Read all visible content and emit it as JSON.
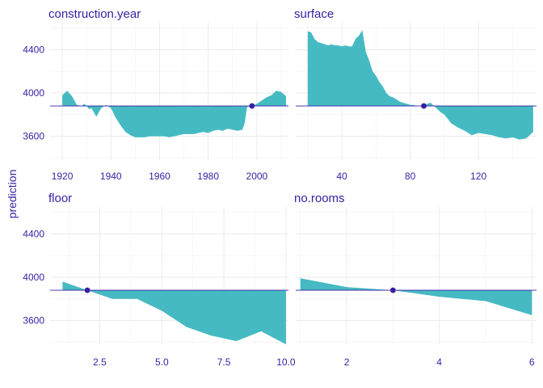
{
  "chart_data": {
    "type": "area",
    "ylabel": "prediction",
    "baseline": 3880,
    "ylim": [
      3380,
      4650
    ],
    "yticks": [
      3600,
      4000,
      4400
    ],
    "colors": {
      "fill": "#46bac2",
      "baseline": "#371ea3",
      "point": "#371ea3",
      "text": "#371ea3",
      "grid": "#ebebeb"
    },
    "panels": [
      {
        "title": "construction.year",
        "xlim": [
          1915,
          2013
        ],
        "xticks": [
          1920,
          1940,
          1960,
          1980,
          2000
        ],
        "highlight": {
          "x": 1998,
          "y": 3880
        },
        "x": [
          1915,
          1920,
          1922,
          1924,
          1926,
          1928,
          1929,
          1930,
          1931,
          1932,
          1934,
          1936,
          1938,
          1940,
          1942,
          1944,
          1946,
          1948,
          1950,
          1952,
          1954,
          1956,
          1958,
          1960,
          1962,
          1964,
          1966,
          1968,
          1970,
          1972,
          1974,
          1976,
          1978,
          1980,
          1982,
          1984,
          1986,
          1988,
          1990,
          1992,
          1994,
          1995,
          1996,
          1998,
          2000,
          2002,
          2004,
          2006,
          2008,
          2010,
          2012
        ],
        "y": [
          null,
          3980,
          4020,
          3970,
          3890,
          3880,
          3900,
          3880,
          3850,
          3860,
          3780,
          3860,
          3890,
          3860,
          3770,
          3700,
          3640,
          3610,
          3590,
          3590,
          3590,
          3600,
          3600,
          3600,
          3600,
          3590,
          3600,
          3610,
          3620,
          3620,
          3620,
          3630,
          3640,
          3630,
          3650,
          3660,
          3650,
          3670,
          3660,
          3650,
          3660,
          3720,
          3870,
          3880,
          3900,
          3930,
          3960,
          3980,
          4020,
          4010,
          3970
        ]
      },
      {
        "title": "surface",
        "xlim": [
          13,
          154
        ],
        "xticks": [
          40,
          80,
          120
        ],
        "highlight": {
          "x": 88,
          "y": 3880
        },
        "x": [
          13,
          20,
          22,
          24,
          26,
          28,
          30,
          32,
          34,
          36,
          38,
          40,
          42,
          44,
          46,
          48,
          50,
          52,
          54,
          56,
          58,
          60,
          62,
          64,
          66,
          68,
          70,
          72,
          74,
          76,
          78,
          80,
          82,
          84,
          86,
          88,
          90,
          92,
          94,
          96,
          98,
          100,
          104,
          108,
          112,
          116,
          120,
          124,
          128,
          132,
          136,
          140,
          144,
          148,
          152
        ],
        "y": [
          null,
          4570,
          4560,
          4500,
          4470,
          4460,
          4450,
          4440,
          4450,
          4440,
          4440,
          4430,
          4440,
          4430,
          4430,
          4500,
          4530,
          4580,
          4380,
          4300,
          4200,
          4160,
          4100,
          4060,
          4000,
          3970,
          3960,
          3940,
          3920,
          3910,
          3900,
          3890,
          3890,
          3880,
          3880,
          3880,
          3900,
          3910,
          3880,
          3850,
          3820,
          3800,
          3720,
          3680,
          3650,
          3610,
          3630,
          3620,
          3610,
          3590,
          3580,
          3590,
          3570,
          3580,
          3640
        ]
      },
      {
        "title": "floor",
        "xlim": [
          0.5,
          10.1
        ],
        "xticks": [
          2.5,
          5.0,
          7.5,
          10.0
        ],
        "highlight": {
          "x": 2,
          "y": 3880
        },
        "x": [
          1,
          2,
          3,
          4,
          5,
          6,
          7,
          8,
          9,
          10
        ],
        "y": [
          3960,
          3880,
          3800,
          3800,
          3690,
          3540,
          3460,
          3410,
          3500,
          3380
        ]
      },
      {
        "title": "no.rooms",
        "xlim": [
          0.9,
          6.1
        ],
        "xticks": [
          2,
          4,
          6
        ],
        "highlight": {
          "x": 3,
          "y": 3880
        },
        "x": [
          1,
          2,
          3,
          4,
          5,
          6
        ],
        "y": [
          3990,
          3910,
          3880,
          3820,
          3780,
          3650
        ]
      }
    ]
  }
}
